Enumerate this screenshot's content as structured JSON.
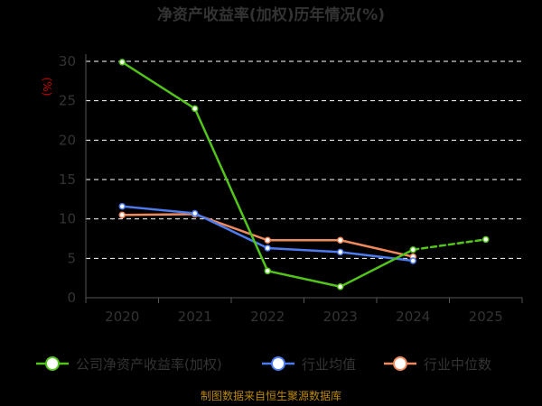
{
  "chart_data": {
    "type": "line",
    "title": "净资产收益率(加权)历年情况(%)",
    "unit_label": "(%)",
    "categories": [
      "2020",
      "2021",
      "2022",
      "2023",
      "2024",
      "2025"
    ],
    "ylim": [
      0,
      30
    ],
    "yticks": [
      0,
      5,
      10,
      15,
      20,
      25,
      30
    ],
    "grid": true,
    "legend_position": "bottom",
    "series": [
      {
        "name": "公司净资产收益率(加权)",
        "values": [
          29.9,
          24.0,
          3.4,
          1.4,
          6.1,
          7.4
        ],
        "color": "#52c41a",
        "dashed_from_index": 4
      },
      {
        "name": "行业均值",
        "values": [
          11.6,
          10.7,
          6.3,
          5.8,
          4.7,
          null
        ],
        "color": "#4d7cf0"
      },
      {
        "name": "行业中位数",
        "values": [
          10.5,
          10.6,
          7.3,
          7.3,
          5.2,
          null
        ],
        "color": "#f08a5d"
      }
    ],
    "source": "制图数据来自恒生聚源数据库"
  }
}
